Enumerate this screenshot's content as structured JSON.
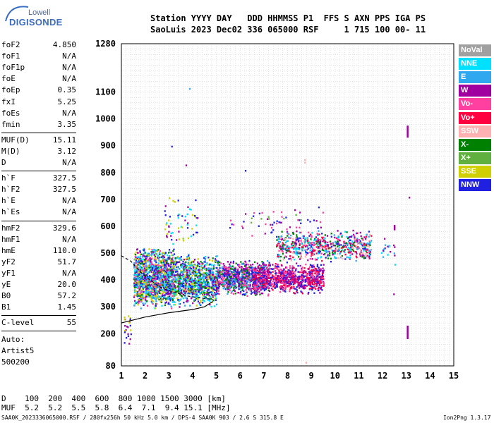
{
  "logo": {
    "top": "Lowell",
    "main": "DIGISONDE"
  },
  "header": {
    "line1": "Station YYYY DAY   DDD HHMMSS P1  FFS S AXN PPS IGA PS",
    "line2": "SaoLuis 2023 Dec02 336 065000 RSF     1 715 100 00- 11"
  },
  "params_group1": [
    {
      "name": "foF2",
      "value": "4.850"
    },
    {
      "name": "foF1",
      "value": "N/A"
    },
    {
      "name": "foF1p",
      "value": "N/A"
    },
    {
      "name": "foE",
      "value": "N/A"
    },
    {
      "name": "foEp",
      "value": "0.35"
    },
    {
      "name": "fxI",
      "value": "5.25"
    },
    {
      "name": "foEs",
      "value": "N/A"
    },
    {
      "name": "fmin",
      "value": "3.35"
    }
  ],
  "params_group2": [
    {
      "name": "MUF(D)",
      "value": "15.11"
    },
    {
      "name": "M(D)",
      "value": "3.12"
    },
    {
      "name": "D",
      "value": "N/A"
    }
  ],
  "params_group3": [
    {
      "name": "h`F",
      "value": "327.5"
    },
    {
      "name": "h`F2",
      "value": "327.5"
    },
    {
      "name": "h`E",
      "value": "N/A"
    },
    {
      "name": "h`Es",
      "value": "N/A"
    }
  ],
  "params_group4": [
    {
      "name": "hmF2",
      "value": "329.6"
    },
    {
      "name": "hmF1",
      "value": "N/A"
    },
    {
      "name": "hmE",
      "value": "110.0"
    },
    {
      "name": "yF2",
      "value": "51.7"
    },
    {
      "name": "yF1",
      "value": "N/A"
    },
    {
      "name": "yE",
      "value": "20.0"
    },
    {
      "name": "B0",
      "value": "57.2"
    },
    {
      "name": "B1",
      "value": "1.45"
    }
  ],
  "clevel": {
    "name": "C-level",
    "value": "55"
  },
  "auto": {
    "line1": "Auto:",
    "line2": "Artist5",
    "line3": "500200"
  },
  "legend": [
    {
      "label": "NoVal",
      "color": "#a0a0a0"
    },
    {
      "label": "NNE",
      "color": "#00e0ff"
    },
    {
      "label": "E",
      "color": "#30a8f0"
    },
    {
      "label": "W",
      "color": "#a000a0"
    },
    {
      "label": "Vo-",
      "color": "#ff40a0"
    },
    {
      "label": "Vo+",
      "color": "#ff0040"
    },
    {
      "label": "SSW",
      "color": "#ffb0b0"
    },
    {
      "label": "X-",
      "color": "#008000"
    },
    {
      "label": "X+",
      "color": "#60b040"
    },
    {
      "label": "SSE",
      "color": "#d0d000"
    },
    {
      "label": "NNW",
      "color": "#2020e0"
    }
  ],
  "muf_table": {
    "row1": "D    100  200  400  600  800 1000 1500 3000 [km]",
    "row2": "MUF  5.2  5.2  5.5  5.8  6.4  7.1  9.4 15.1 [MHz]"
  },
  "footer": {
    "left": "SAA0K_2023336065000.RSF / 280fx256h 50 kHz 5.0 km / DPS-4 SAA0K 903 / 2.6 S 315.8 E",
    "right": "Ion2Png 1.3.17"
  },
  "chart_data": {
    "type": "scatter",
    "xlabel": "",
    "ylabel": "",
    "xlim": [
      1,
      15
    ],
    "ylim": [
      80,
      1280
    ],
    "x_ticks": [
      1,
      2,
      3,
      4,
      5,
      6,
      7,
      8,
      9,
      10,
      11,
      12,
      13,
      14,
      15
    ],
    "y_ticks": [
      80,
      200,
      300,
      400,
      500,
      600,
      700,
      800,
      900,
      1000,
      1100,
      1280
    ],
    "x_grid_step": 0.2,
    "y_grid_step": 20,
    "grid": true,
    "legend_position": "right",
    "trace_profile": [
      [
        1,
        240
      ],
      [
        2,
        262
      ],
      [
        3,
        278
      ],
      [
        4,
        290
      ],
      [
        4.5,
        300
      ],
      [
        4.85,
        320
      ]
    ],
    "trace_ordinary": [
      [
        1,
        490
      ],
      [
        1.4,
        470
      ],
      [
        1.8,
        430
      ],
      [
        2.2,
        400
      ],
      [
        2.7,
        370
      ],
      [
        3.2,
        355
      ],
      [
        3.8,
        340
      ],
      [
        4.5,
        331
      ],
      [
        4.85,
        328
      ]
    ],
    "clusters": [
      {
        "x": [
          1.5,
          3.2
        ],
        "y": [
          290,
          530
        ],
        "colors": [
          "#2020e0",
          "#a000a0",
          "#d0d000",
          "#008000",
          "#ff40a0",
          "#30a8f0",
          "#00e0ff"
        ],
        "n": 1400
      },
      {
        "x": [
          3.2,
          5.0
        ],
        "y": [
          300,
          500
        ],
        "colors": [
          "#2020e0",
          "#a000a0",
          "#d0d000",
          "#30a8f0",
          "#00e0ff",
          "#008000"
        ],
        "n": 900
      },
      {
        "x": [
          5.0,
          7.2
        ],
        "y": [
          340,
          480
        ],
        "colors": [
          "#2020e0",
          "#a000a0",
          "#30a8f0",
          "#ff40a0",
          "#008000"
        ],
        "n": 800
      },
      {
        "x": [
          6.5,
          9.5
        ],
        "y": [
          350,
          470
        ],
        "colors": [
          "#ff0040",
          "#ff40a0",
          "#a000a0",
          "#2020e0"
        ],
        "n": 900
      },
      {
        "x": [
          7.5,
          11.5
        ],
        "y": [
          470,
          590
        ],
        "colors": [
          "#ff40a0",
          "#a000a0",
          "#ff0040",
          "#ffb0b0",
          "#2020e0",
          "#30a8f0",
          "#00e0ff",
          "#008000"
        ],
        "n": 700
      },
      {
        "x": [
          2.8,
          4.2
        ],
        "y": [
          520,
          720
        ],
        "colors": [
          "#2020e0",
          "#d0d000",
          "#a000a0",
          "#00e0ff"
        ],
        "n": 60
      },
      {
        "x": [
          5.5,
          9.5
        ],
        "y": [
          560,
          680
        ],
        "colors": [
          "#2020e0",
          "#a000a0",
          "#60b040",
          "#ff40a0"
        ],
        "n": 60
      },
      {
        "x": [
          11.9,
          12.5
        ],
        "y": [
          470,
          560
        ],
        "colors": [
          "#00e0ff",
          "#30a8f0",
          "#a000a0"
        ],
        "n": 20
      },
      {
        "x": [
          1.1,
          1.4
        ],
        "y": [
          120,
          300
        ],
        "colors": [
          "#d0d000",
          "#2020e0",
          "#a000a0"
        ],
        "n": 25
      }
    ],
    "columns": [
      {
        "x": 13.05,
        "y": [
          930,
          975
        ],
        "color": "#a000a0"
      },
      {
        "x": 13.05,
        "y": [
          180,
          230
        ],
        "color": "#a000a0"
      },
      {
        "x": 12.5,
        "y": [
          585,
          605
        ],
        "color": "#a000a0"
      }
    ],
    "isolated_points": [
      {
        "x": 3.85,
        "y": 1115,
        "color": "#30a8f0"
      },
      {
        "x": 3.1,
        "y": 900,
        "color": "#2020e0"
      },
      {
        "x": 3.7,
        "y": 830,
        "color": "#a000a0"
      },
      {
        "x": 8.7,
        "y": 850,
        "color": "#ffb0b0"
      },
      {
        "x": 8.7,
        "y": 840,
        "color": "#ffb0b0"
      },
      {
        "x": 8.75,
        "y": 95,
        "color": "#ffb0b0"
      },
      {
        "x": 13.1,
        "y": 710,
        "color": "#a000a0"
      },
      {
        "x": 12.45,
        "y": 350,
        "color": "#a000a0"
      },
      {
        "x": 12.5,
        "y": 460,
        "color": "#00e0ff"
      },
      {
        "x": 6.2,
        "y": 810,
        "color": "#2020e0"
      }
    ]
  }
}
